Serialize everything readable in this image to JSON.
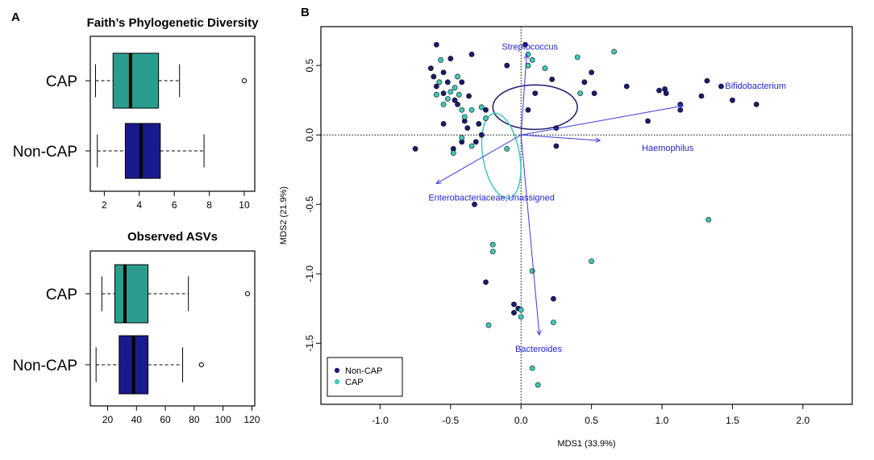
{
  "panels": {
    "a_letter": "A",
    "b_letter": "B"
  },
  "chart_data": [
    {
      "type": "boxplot",
      "orientation": "horizontal",
      "title": "Faith’s Phylogenetic Diversity",
      "xlim": [
        1.2,
        10.6
      ],
      "xticks": [
        2,
        4,
        6,
        8,
        10
      ],
      "groups": [
        {
          "name": "CAP",
          "color": "#2a9d8f",
          "whisker_low": 1.5,
          "q1": 2.5,
          "median": 3.5,
          "q3": 5.1,
          "whisker_high": 6.3,
          "outliers": [
            10.0
          ]
        },
        {
          "name": "Non-CAP",
          "color": "#1a1a8f",
          "whisker_low": 1.6,
          "q1": 3.2,
          "median": 4.1,
          "q3": 5.2,
          "whisker_high": 7.7,
          "outliers": []
        }
      ]
    },
    {
      "type": "boxplot",
      "orientation": "horizontal",
      "title": "Observed ASVs",
      "xlim": [
        8,
        122
      ],
      "xticks": [
        20,
        40,
        60,
        80,
        100,
        120
      ],
      "groups": [
        {
          "name": "CAP",
          "color": "#2a9d8f",
          "whisker_low": 16,
          "q1": 25,
          "median": 32,
          "q3": 48,
          "whisker_high": 76,
          "outliers": [
            117
          ]
        },
        {
          "name": "Non-CAP",
          "color": "#1a1a8f",
          "whisker_low": 12,
          "q1": 28,
          "median": 38,
          "q3": 48,
          "whisker_high": 72,
          "outliers": [
            85
          ]
        }
      ]
    },
    {
      "type": "scatter",
      "title": "",
      "xlabel": "MDS1 (33.9%)",
      "ylabel": "MDS2 (21.9%)",
      "xlim": [
        -1.42,
        2.35
      ],
      "ylim": [
        -1.94,
        0.78
      ],
      "xticks": [
        -1.0,
        -0.5,
        0.0,
        0.5,
        1.0,
        1.5,
        2.0
      ],
      "xtick_labels": [
        "-1.0",
        "-0.5",
        "0.0",
        "0.5",
        "1.0",
        "1.5",
        "2.0"
      ],
      "yticks": [
        0.5,
        0.0,
        -0.5,
        -1.0,
        -1.5
      ],
      "ytick_labels": [
        "0.5",
        "0.0",
        "-0.5",
        "-1.0",
        "-1.5"
      ],
      "reference_lines": {
        "x": 0,
        "y": 0
      },
      "legend": {
        "placement": "bottom-left",
        "entries": [
          {
            "label": "Non-CAP",
            "color": "#1a1a6e"
          },
          {
            "label": "CAP",
            "color": "#3ec8b8"
          }
        ]
      },
      "series": [
        {
          "name": "Non-CAP",
          "color": "#1a1a6e",
          "points": [
            [
              -0.6,
              0.65
            ],
            [
              -0.35,
              0.58
            ],
            [
              -0.5,
              0.55
            ],
            [
              -0.64,
              0.48
            ],
            [
              -0.55,
              0.45
            ],
            [
              -0.62,
              0.42
            ],
            [
              -0.52,
              0.38
            ],
            [
              -0.6,
              0.35
            ],
            [
              -0.42,
              0.38
            ],
            [
              -0.37,
              0.28
            ],
            [
              -0.47,
              0.25
            ],
            [
              -0.55,
              0.3
            ],
            [
              -0.45,
              0.22
            ],
            [
              -0.4,
              0.1
            ],
            [
              -0.3,
              0.08
            ],
            [
              -0.38,
              0.05
            ],
            [
              -0.28,
              0.0
            ],
            [
              -0.32,
              -0.05
            ],
            [
              -0.42,
              -0.05
            ],
            [
              -0.55,
              0.08
            ],
            [
              -0.75,
              -0.1
            ],
            [
              -0.48,
              -0.1
            ],
            [
              -0.25,
              0.18
            ],
            [
              -0.1,
              0.5
            ],
            [
              0.1,
              0.3
            ],
            [
              0.05,
              0.18
            ],
            [
              0.22,
              0.4
            ],
            [
              0.25,
              0.05
            ],
            [
              0.25,
              -0.08
            ],
            [
              0.45,
              0.38
            ],
            [
              0.5,
              0.45
            ],
            [
              0.52,
              0.3
            ],
            [
              0.75,
              0.35
            ],
            [
              0.9,
              0.1
            ],
            [
              0.98,
              0.32
            ],
            [
              1.02,
              0.33
            ],
            [
              1.03,
              0.3
            ],
            [
              1.13,
              0.22
            ],
            [
              1.13,
              0.18
            ],
            [
              1.28,
              0.28
            ],
            [
              1.32,
              0.39
            ],
            [
              1.42,
              0.35
            ],
            [
              1.5,
              0.25
            ],
            [
              1.67,
              0.22
            ],
            [
              -0.33,
              -0.5
            ],
            [
              -0.25,
              -1.06
            ],
            [
              -0.05,
              -1.22
            ],
            [
              -0.05,
              -1.28
            ],
            [
              -0.02,
              -1.25
            ],
            [
              0.23,
              -1.18
            ],
            [
              0.03,
              0.65
            ]
          ]
        },
        {
          "name": "CAP",
          "color": "#3ec8b8",
          "points": [
            [
              -0.57,
              0.54
            ],
            [
              -0.58,
              0.38
            ],
            [
              -0.6,
              0.29
            ],
            [
              -0.45,
              0.42
            ],
            [
              -0.47,
              0.34
            ],
            [
              -0.5,
              0.31
            ],
            [
              -0.44,
              0.29
            ],
            [
              -0.52,
              0.26
            ],
            [
              -0.42,
              0.18
            ],
            [
              -0.28,
              0.2
            ],
            [
              -0.35,
              0.18
            ],
            [
              -0.4,
              0.13
            ],
            [
              -0.55,
              0.22
            ],
            [
              -0.25,
              0.12
            ],
            [
              -0.42,
              -0.02
            ],
            [
              -0.35,
              -0.08
            ],
            [
              -0.48,
              -0.13
            ],
            [
              0.05,
              0.58
            ],
            [
              0.08,
              0.54
            ],
            [
              0.05,
              0.5
            ],
            [
              0.17,
              0.48
            ],
            [
              0.4,
              0.56
            ],
            [
              0.66,
              0.6
            ],
            [
              0.42,
              0.3
            ],
            [
              -0.1,
              -0.1
            ],
            [
              -0.2,
              -0.79
            ],
            [
              -0.2,
              -0.84
            ],
            [
              0.08,
              -0.98
            ],
            [
              0.5,
              -0.91
            ],
            [
              1.33,
              -0.61
            ],
            [
              -0.23,
              -1.37
            ],
            [
              0.0,
              -1.31
            ],
            [
              0.0,
              -1.26
            ],
            [
              0.23,
              -1.35
            ],
            [
              0.08,
              -1.68
            ],
            [
              0.12,
              -1.8
            ]
          ]
        }
      ],
      "vectors": [
        {
          "label": "Streptococcus",
          "dx": 0.04,
          "dy": 0.58
        },
        {
          "label": "Bifidobacterium",
          "dx": 1.15,
          "dy": 0.21
        },
        {
          "label": "Haemophilus",
          "dx": 0.56,
          "dy": -0.04
        },
        {
          "label": "Enterobacteriaceae;Unassigned",
          "dx": -0.6,
          "dy": -0.35
        },
        {
          "label": "Bacteroides",
          "dx": 0.13,
          "dy": -1.44
        }
      ],
      "ellipses": [
        {
          "group": "Non-CAP",
          "color": "#1a1a6e",
          "cx": 0.1,
          "cy": 0.2,
          "rx": 0.3,
          "ry": 0.16,
          "angle_deg": 0
        },
        {
          "group": "CAP",
          "color": "#3ec8b8",
          "cx": -0.14,
          "cy": -0.15,
          "rx": 0.13,
          "ry": 0.31,
          "angle_deg": -10
        }
      ]
    }
  ]
}
